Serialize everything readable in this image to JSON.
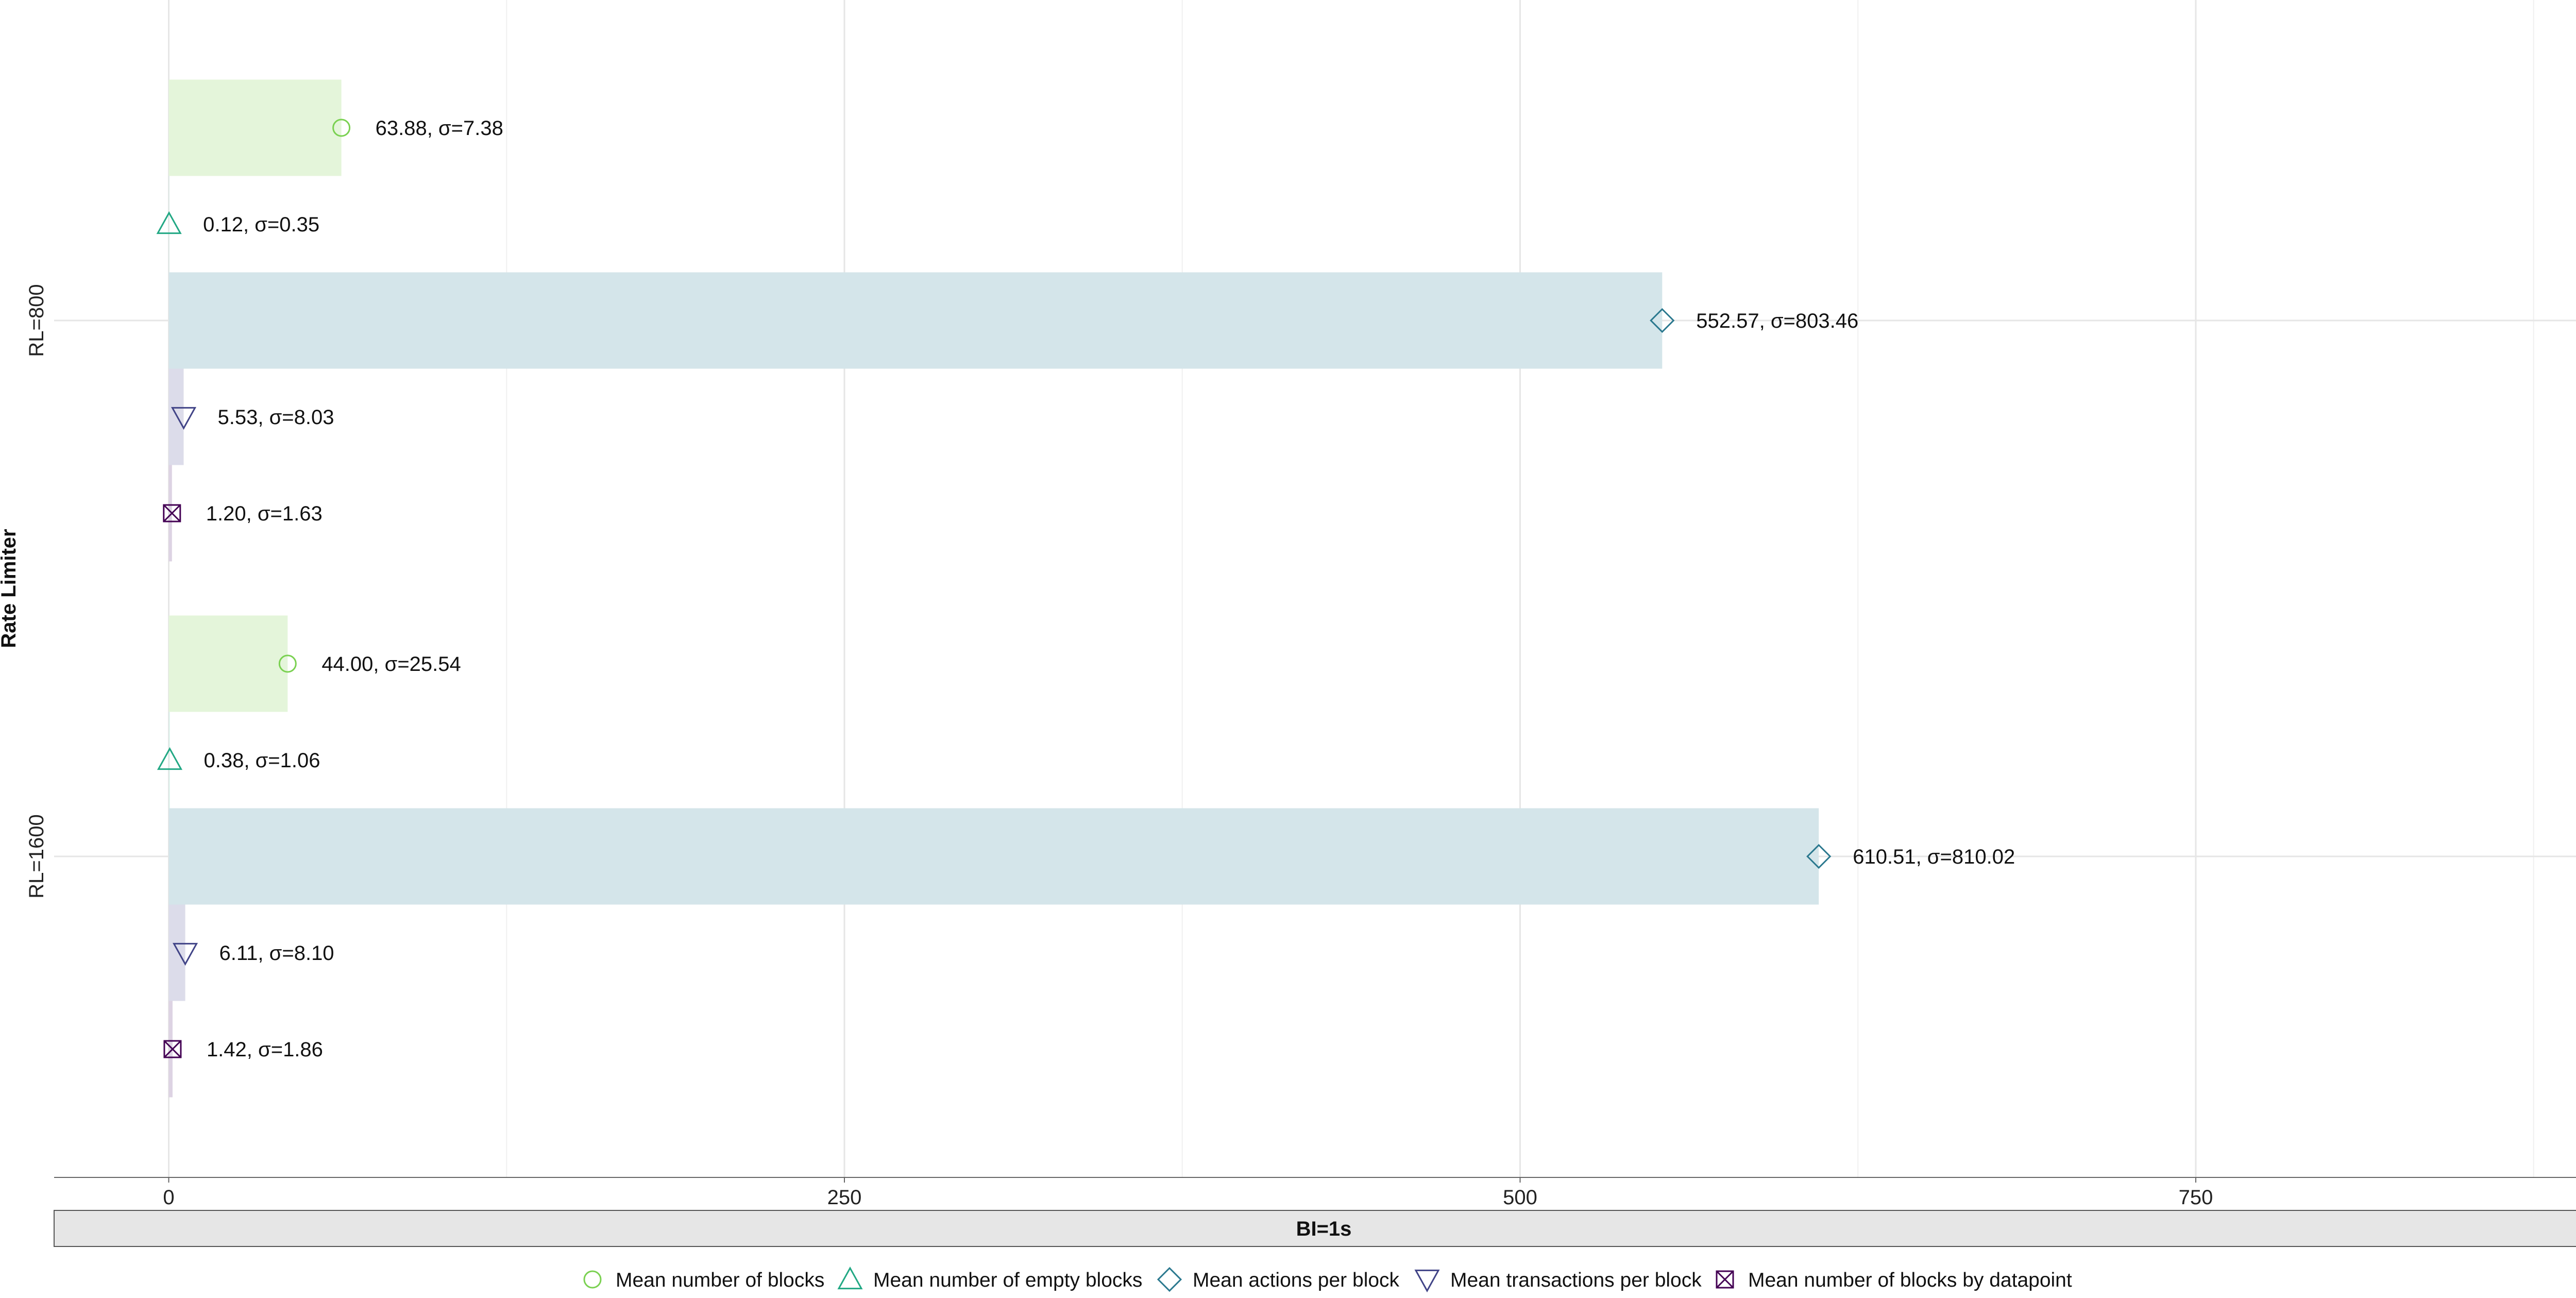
{
  "chart_data": {
    "type": "bar",
    "orientation": "horizontal",
    "ylabel": "Rate Limiter",
    "facet_label": "BI=1s",
    "xlim": [
      -21,
      900
    ],
    "x_ticks": [
      0,
      250,
      500,
      750
    ],
    "x_tick_labels": [
      "0",
      "250",
      "500",
      "750"
    ],
    "grid": true,
    "legend_position": "bottom",
    "groups": [
      "RL=800",
      "RL=1600"
    ],
    "series": [
      {
        "name": "Mean number of blocks",
        "marker": "circle",
        "color": "#7ad151",
        "fill": "#e4f5da",
        "values": [
          63.88,
          44.0
        ],
        "sigma": [
          7.38,
          25.54
        ],
        "labels": [
          "63.88, σ=7.38",
          "44.00, σ=25.54"
        ]
      },
      {
        "name": "Mean number of empty blocks",
        "marker": "triangle-up",
        "color": "#22a884",
        "fill": "#d9efe8",
        "values": [
          0.12,
          0.38
        ],
        "sigma": [
          0.35,
          1.06
        ],
        "labels": [
          "0.12, σ=0.35",
          "0.38, σ=1.06"
        ]
      },
      {
        "name": "Mean actions per block",
        "marker": "diamond",
        "color": "#2a788e",
        "fill": "#d4e5ea",
        "values": [
          552.57,
          610.51
        ],
        "sigma": [
          803.46,
          810.02
        ],
        "labels": [
          "552.57, σ=803.46",
          "610.51, σ=810.02"
        ]
      },
      {
        "name": "Mean transactions per block",
        "marker": "triangle-down",
        "color": "#414487",
        "fill": "#dcdcea",
        "values": [
          5.53,
          6.11
        ],
        "sigma": [
          8.03,
          8.1
        ],
        "labels": [
          "5.53, σ=8.03",
          "6.11, σ=8.10"
        ]
      },
      {
        "name": "Mean number of blocks by datapoint",
        "marker": "square-x",
        "color": "#440154",
        "fill": "#ddd3e3",
        "values": [
          1.2,
          1.42
        ],
        "sigma": [
          1.63,
          1.86
        ],
        "labels": [
          "1.20, σ=1.63",
          "1.42, σ=1.86"
        ]
      }
    ]
  }
}
